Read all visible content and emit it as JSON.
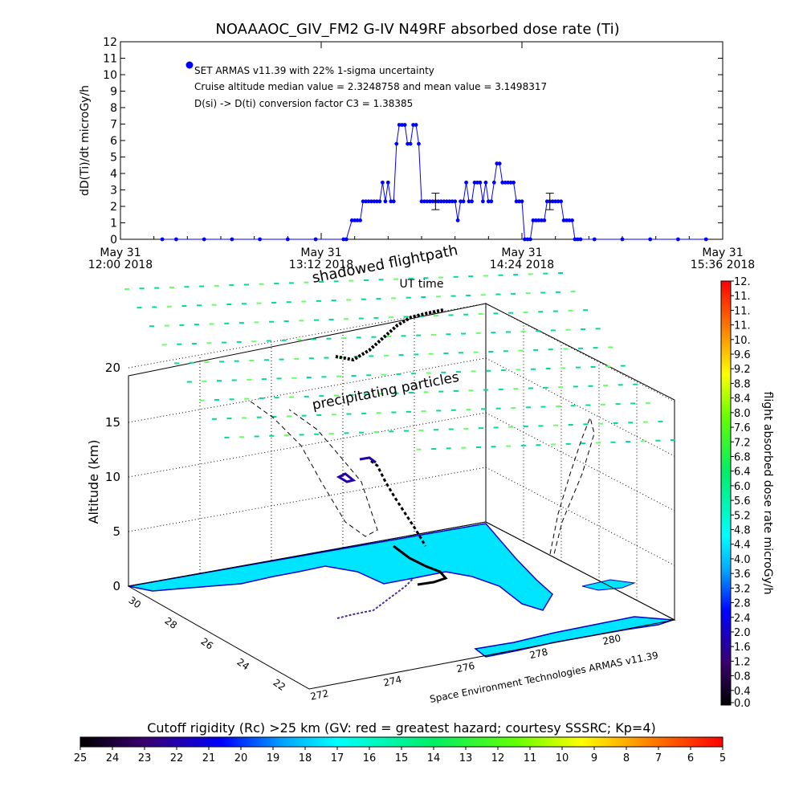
{
  "title": "NOAAAOC_GIV_FM2 G-IV    N49RF  absorbed dose rate (Ti)",
  "time_chart": {
    "ylabel": "dD(Ti)/dt microGy/h",
    "xlabel": "UT time",
    "yticks": [
      "0",
      "1",
      "2",
      "3",
      "4",
      "5",
      "6",
      "7",
      "8",
      "9",
      "10",
      "11",
      "12"
    ],
    "xticks": [
      {
        "line1": "May 31",
        "line2": "12:00 2018"
      },
      {
        "line1": "May 31",
        "line2": "13:12 2018"
      },
      {
        "line1": "May 31",
        "line2": "14:24 2018"
      },
      {
        "line1": "May 31",
        "line2": "15:36 2018"
      }
    ],
    "legend_label": "SET ARMAS v11.39 with 22% 1-sigma uncertainty",
    "annotation_1": "Cruise altitude median value = 2.3248758 and mean value = 3.1498317",
    "annotation_2": "D(si) -> D(ti) conversion factor C3 = 1.38385",
    "series_color": "#0000ff"
  },
  "chart_data": [
    {
      "type": "line",
      "title": "NOAAAOC_GIV_FM2 G-IV    N49RF  absorbed dose rate (Ti)",
      "xlabel": "UT time",
      "ylabel": "dD(Ti)/dt microGy/h",
      "ylim": [
        0,
        12
      ],
      "xlim": [
        "2018-05-31 12:00",
        "2018-05-31 15:36"
      ],
      "series": [
        {
          "name": "SET ARMAS v11.39 with 22% 1-sigma uncertainty",
          "x": [
            "12:15",
            "12:20",
            "12:30",
            "12:40",
            "12:50",
            "13:00",
            "13:10",
            "13:20",
            "13:21",
            "13:23",
            "13:24",
            "13:25",
            "13:26",
            "13:27",
            "13:28",
            "13:29",
            "13:30",
            "13:31",
            "13:32",
            "13:33",
            "13:34",
            "13:35",
            "13:36",
            "13:37",
            "13:38",
            "13:39",
            "13:40",
            "13:41",
            "13:42",
            "13:43",
            "13:44",
            "13:45",
            "13:46",
            "13:47",
            "13:48",
            "13:49",
            "13:50",
            "13:51",
            "13:52",
            "13:53",
            "13:54",
            "13:55",
            "13:56",
            "13:57",
            "13:58",
            "13:59",
            "14:00",
            "14:01",
            "14:02",
            "14:03",
            "14:04",
            "14:05",
            "14:06",
            "14:07",
            "14:08",
            "14:09",
            "14:10",
            "14:11",
            "14:12",
            "14:13",
            "14:14",
            "14:15",
            "14:16",
            "14:17",
            "14:18",
            "14:19",
            "14:20",
            "14:21",
            "14:22",
            "14:23",
            "14:24",
            "14:25",
            "14:26",
            "14:27",
            "14:28",
            "14:29",
            "14:30",
            "14:31",
            "14:32",
            "14:33",
            "14:34",
            "14:35",
            "14:36",
            "14:37",
            "14:38",
            "14:39",
            "14:40",
            "14:41",
            "14:42",
            "14:43",
            "14:44",
            "14:45",
            "14:50",
            "15:00",
            "15:10",
            "15:20",
            "15:30"
          ],
          "values": [
            0,
            0,
            0,
            0,
            0,
            0,
            0,
            0,
            0,
            1.15,
            1.15,
            1.15,
            1.15,
            2.3,
            2.3,
            2.3,
            2.3,
            2.3,
            2.3,
            2.3,
            3.45,
            2.3,
            3.45,
            2.3,
            2.3,
            5.8,
            6.95,
            6.95,
            6.95,
            5.8,
            5.8,
            6.95,
            6.95,
            5.8,
            2.3,
            2.3,
            2.3,
            2.3,
            2.3,
            2.3,
            2.3,
            2.3,
            2.3,
            2.3,
            2.3,
            2.3,
            2.3,
            1.15,
            2.3,
            2.3,
            3.45,
            2.3,
            2.3,
            3.45,
            3.45,
            3.45,
            2.3,
            3.45,
            2.3,
            2.3,
            3.45,
            4.6,
            4.6,
            3.45,
            3.45,
            3.45,
            3.45,
            3.45,
            2.3,
            2.3,
            2.3,
            0,
            0,
            0,
            1.15,
            1.15,
            1.15,
            1.15,
            1.15,
            2.3,
            2.3,
            2.3,
            2.3,
            2.3,
            2.3,
            1.15,
            1.15,
            1.15,
            1.15,
            0,
            0,
            0,
            0,
            0,
            0,
            0,
            0
          ],
          "error_bars": [
            {
              "x": "13:53",
              "y": 2.3,
              "sigma": 0.5
            },
            {
              "x": "14:34",
              "y": 2.3,
              "sigma": 0.5
            }
          ]
        }
      ]
    },
    {
      "type": "scatter",
      "title": "",
      "zlabel": "Altitude (km)",
      "zticks": [
        "0",
        "5",
        "10",
        "15",
        "20"
      ],
      "zlim": [
        0,
        20
      ],
      "lat_ticks": [
        "22",
        "24",
        "26",
        "28",
        "30"
      ],
      "lon_ticks": [
        "272",
        "274",
        "276",
        "278",
        "280"
      ],
      "annotations": [
        "shadowed flightpath",
        "precipitating particles"
      ]
    }
  ],
  "footer_note": "Space Environment Technologies ARMAS v11.39",
  "right_colorbar": {
    "label": "flight absorbed dose rate microGy/h",
    "ticks": [
      "0.0",
      "0.4",
      "0.8",
      "1.2",
      "1.6",
      "2.0",
      "2.4",
      "2.8",
      "3.2",
      "3.6",
      "4.0",
      "4.4",
      "4.8",
      "5.2",
      "5.6",
      "6.0",
      "6.4",
      "6.8",
      "7.2",
      "7.6",
      "8.0",
      "8.4",
      "8.8",
      "9.2",
      "9.6",
      "10.",
      "11.",
      "11.",
      "11.",
      "12."
    ]
  },
  "bottom_colorbar": {
    "label": "Cutoff rigidity (Rc) >25 km (GV: red = greatest hazard; courtesy SSSRC; Kp=4)",
    "ticks": [
      "25",
      "24",
      "23",
      "22",
      "21",
      "20",
      "19",
      "18",
      "17",
      "16",
      "15",
      "14",
      "13",
      "12",
      "11",
      "10",
      "9",
      "8",
      "7",
      "6",
      "5"
    ]
  },
  "colors": {
    "land": "#00e5ff",
    "coast": "#0000cc",
    "particles": "#00dd88",
    "flightpath": "#000000",
    "error_bar": "#000000"
  }
}
